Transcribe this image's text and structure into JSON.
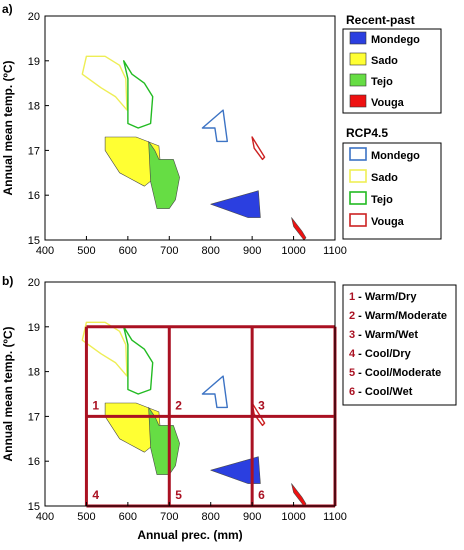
{
  "chart_data": [
    {
      "type": "area",
      "panel_label": "a)",
      "ylabel": "Annual mean temp. (ºC)",
      "xlim": [
        400,
        1100
      ],
      "ylim": [
        15,
        20
      ],
      "xticks": [
        400,
        500,
        600,
        700,
        800,
        900,
        1000,
        1100
      ],
      "yticks": [
        15,
        16,
        17,
        18,
        19,
        20
      ],
      "legend_groups": [
        {
          "title": "Recent-past",
          "style": "filled",
          "entries": [
            {
              "name": "Mondego",
              "color": "#2b3fe0"
            },
            {
              "name": "Sado",
              "color": "#ffff33"
            },
            {
              "name": "Tejo",
              "color": "#66dd44"
            },
            {
              "name": "Vouga",
              "color": "#ee1111"
            }
          ]
        },
        {
          "title": "RCP4.5",
          "style": "outline",
          "entries": [
            {
              "name": "Mondego",
              "color": "#3c73c4"
            },
            {
              "name": "Sado",
              "color": "#eeee55"
            },
            {
              "name": "Tejo",
              "color": "#22bb22"
            },
            {
              "name": "Vouga",
              "color": "#cc2222"
            }
          ]
        }
      ]
    },
    {
      "type": "area",
      "panel_label": "b)",
      "xlabel": "Annual prec. (mm)",
      "ylabel": "Annual mean temp. (ºC)",
      "xlim": [
        400,
        1100
      ],
      "ylim": [
        15,
        20
      ],
      "xticks": [
        400,
        500,
        600,
        700,
        800,
        900,
        1000,
        1100
      ],
      "yticks": [
        15,
        16,
        17,
        18,
        19,
        20
      ],
      "grid_x": [
        500,
        700,
        900,
        1100
      ],
      "grid_y": [
        15,
        17,
        19
      ],
      "grid_color": "#aa1122",
      "cell_labels": [
        {
          "num": "1",
          "x": 500,
          "y": 17
        },
        {
          "num": "2",
          "x": 700,
          "y": 17
        },
        {
          "num": "3",
          "x": 900,
          "y": 17
        },
        {
          "num": "4",
          "x": 500,
          "y": 15
        },
        {
          "num": "5",
          "x": 700,
          "y": 15
        },
        {
          "num": "6",
          "x": 900,
          "y": 15
        }
      ],
      "legend_entries": [
        {
          "num": "1",
          "text": "Warm/Dry"
        },
        {
          "num": "2",
          "text": "Warm/Moderate"
        },
        {
          "num": "3",
          "text": "Warm/Wet"
        },
        {
          "num": "4",
          "text": "Cool/Dry"
        },
        {
          "num": "5",
          "text": "Cool/Moderate"
        },
        {
          "num": "6",
          "text": "Cool/Wet"
        }
      ]
    }
  ],
  "regions": [
    {
      "name": "Mondego",
      "period": "Recent-past",
      "style": "filled",
      "color": "#2b3fe0",
      "points": [
        [
          800,
          15.8
        ],
        [
          915,
          16.1
        ],
        [
          920,
          15.5
        ],
        [
          890,
          15.5
        ]
      ]
    },
    {
      "name": "Mondego",
      "period": "RCP4.5",
      "style": "outline",
      "color": "#3c73c4",
      "points": [
        [
          780,
          17.5
        ],
        [
          830,
          17.9
        ],
        [
          840,
          17.2
        ],
        [
          815,
          17.2
        ],
        [
          810,
          17.5
        ],
        [
          780,
          17.5
        ]
      ]
    },
    {
      "name": "Sado",
      "period": "Recent-past",
      "style": "filled",
      "color": "#ffff33",
      "points": [
        [
          545,
          17.3
        ],
        [
          620,
          17.3
        ],
        [
          675,
          17.1
        ],
        [
          680,
          16.5
        ],
        [
          640,
          16.2
        ],
        [
          580,
          16.5
        ],
        [
          545,
          17.0
        ]
      ]
    },
    {
      "name": "Sado",
      "period": "RCP4.5",
      "style": "outline",
      "color": "#eeee55",
      "points": [
        [
          490,
          18.7
        ],
        [
          500,
          19.1
        ],
        [
          545,
          19.1
        ],
        [
          580,
          18.9
        ],
        [
          595,
          18.6
        ],
        [
          598,
          17.9
        ],
        [
          570,
          18.2
        ],
        [
          535,
          18.4
        ]
      ]
    },
    {
      "name": "Tejo",
      "period": "Recent-past",
      "style": "filled",
      "color": "#66dd44",
      "points": [
        [
          650,
          17.2
        ],
        [
          665,
          17.0
        ],
        [
          675,
          16.8
        ],
        [
          710,
          16.8
        ],
        [
          725,
          16.4
        ],
        [
          715,
          15.9
        ],
        [
          700,
          15.7
        ],
        [
          670,
          15.7
        ],
        [
          655,
          16.3
        ]
      ]
    },
    {
      "name": "Tejo",
      "period": "RCP4.5",
      "style": "outline",
      "color": "#22bb22",
      "points": [
        [
          590,
          19.0
        ],
        [
          610,
          18.7
        ],
        [
          640,
          18.5
        ],
        [
          660,
          18.2
        ],
        [
          655,
          17.6
        ],
        [
          625,
          17.5
        ],
        [
          600,
          17.6
        ],
        [
          600,
          18.6
        ]
      ]
    },
    {
      "name": "Vouga",
      "period": "Recent-past",
      "style": "filled",
      "color": "#ee1111",
      "points": [
        [
          995,
          15.5
        ],
        [
          1020,
          15.2
        ],
        [
          1030,
          15.05
        ],
        [
          1025,
          15.0
        ],
        [
          1000,
          15.3
        ]
      ]
    },
    {
      "name": "Vouga",
      "period": "RCP4.5",
      "style": "outline",
      "color": "#cc2222",
      "points": [
        [
          900,
          17.3
        ],
        [
          920,
          17.0
        ],
        [
          930,
          16.85
        ],
        [
          925,
          16.8
        ],
        [
          905,
          17.05
        ]
      ]
    }
  ]
}
